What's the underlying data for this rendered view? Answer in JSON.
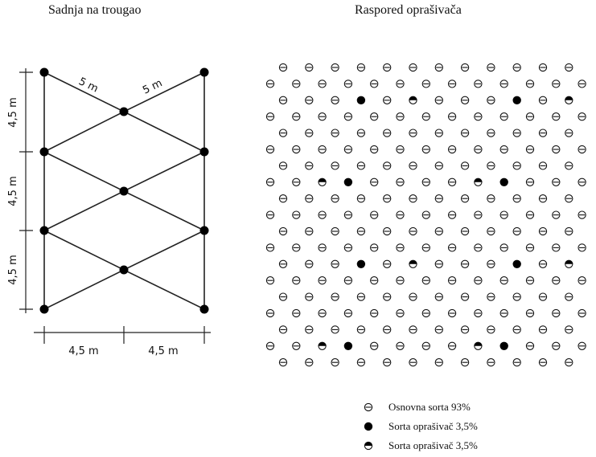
{
  "titles": {
    "left": "Sadnja na trougao",
    "right": "Raspored oprašivača"
  },
  "triangle_diagram": {
    "edge_labels": [
      "5 m",
      "5 m"
    ],
    "row_spacing_labels": [
      "4,5 m",
      "4,5 m",
      "4,5 m"
    ],
    "column_spacing_labels": [
      "4,5 m",
      "4,5 m"
    ]
  },
  "pattern": {
    "rows": 19,
    "marks": {
      "2": {
        "3": "full",
        "5": "half",
        "9": "full",
        "11": "half"
      },
      "7": {
        "2": "half",
        "3": "full",
        "8": "half",
        "9": "full"
      },
      "12": {
        "3": "full",
        "5": "half",
        "9": "full",
        "11": "half"
      },
      "17": {
        "2": "half",
        "3": "full",
        "8": "half",
        "9": "full"
      }
    }
  },
  "legend": [
    {
      "symbol": "main",
      "label": "Osnovna sorta 93%"
    },
    {
      "symbol": "full",
      "label": "Sorta oprašivač 3,5%"
    },
    {
      "symbol": "half",
      "label": "Sorta oprašivač 3,5%"
    }
  ],
  "colors": {
    "ink": "#111111",
    "line": "#222222"
  }
}
